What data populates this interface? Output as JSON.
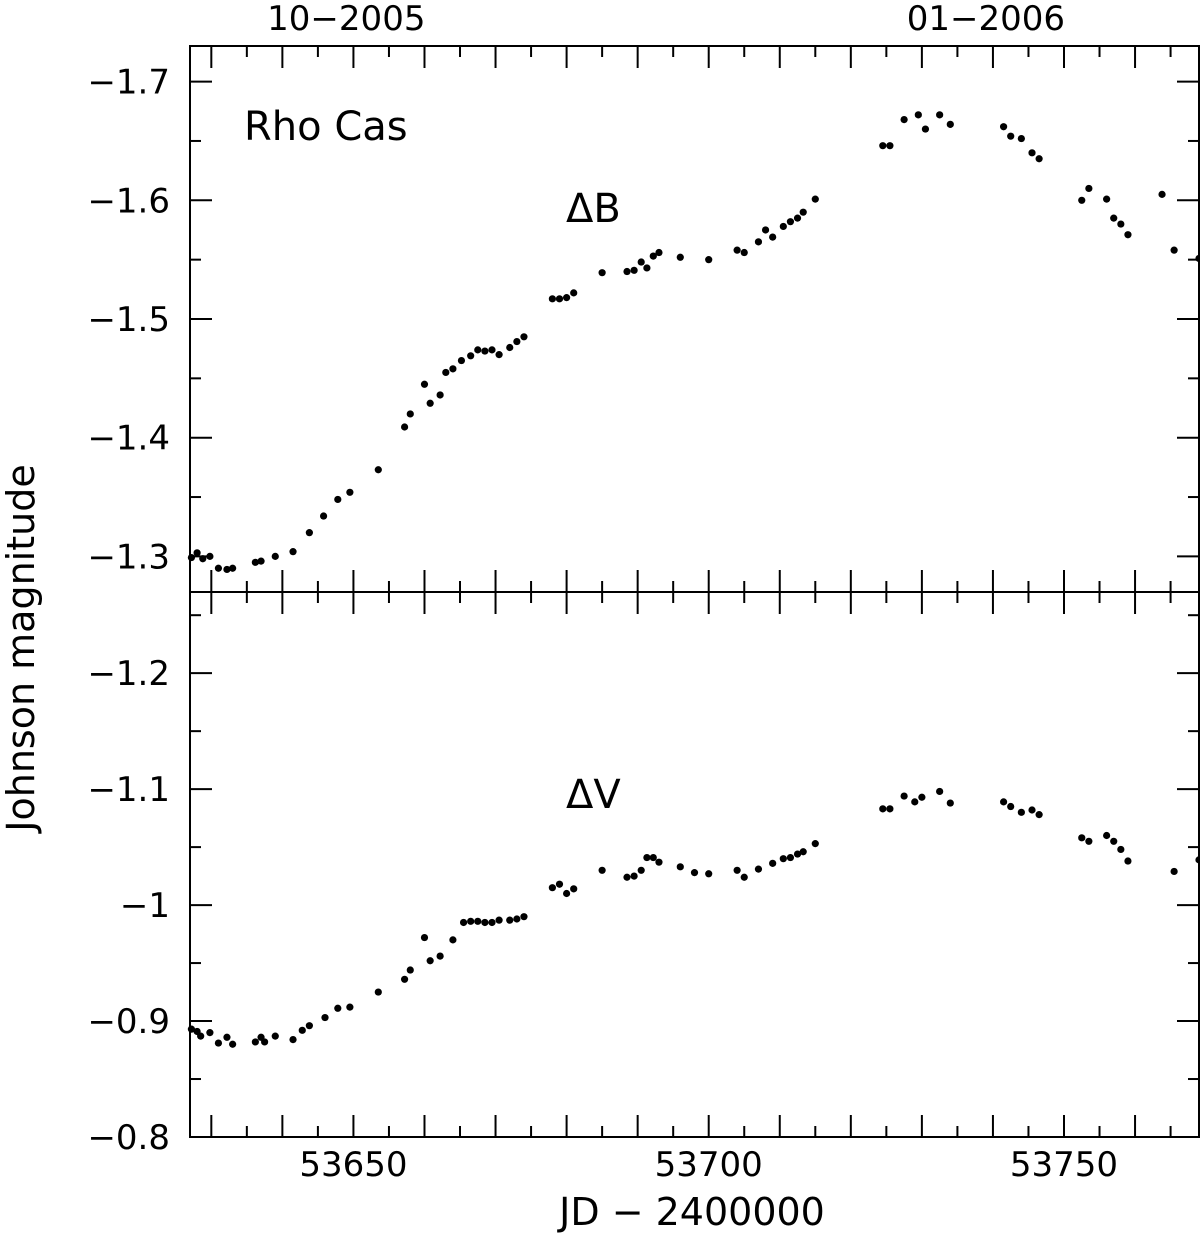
{
  "chart_data": {
    "type": "scatter",
    "title": "Rho Cas",
    "xlabel": "JD − 2400000",
    "ylabel": "Johnson magnitude",
    "xlim": [
      53627,
      53769
    ],
    "x_ticks": [
      "53650",
      "53700",
      "53750"
    ],
    "top_date_labels": [
      {
        "x": 53649,
        "label": "10−2005"
      },
      {
        "x": 53739,
        "label": "01−2006"
      }
    ],
    "grid": false,
    "panels": [
      {
        "label": "ΔB",
        "ylim": [
          -1.73,
          -1.27
        ],
        "y_inverted": true,
        "y_ticks": [
          -1.7,
          -1.6,
          -1.5,
          -1.4,
          -1.3
        ],
        "y_tick_labels": [
          "−1.7",
          "−1.6",
          "−1.5",
          "−1.4",
          "−1.3"
        ],
        "points": [
          [
            53627.2,
            -1.299
          ],
          [
            53628.0,
            -1.303
          ],
          [
            53628.8,
            -1.298
          ],
          [
            53629.8,
            -1.3
          ],
          [
            53631.0,
            -1.29
          ],
          [
            53632.2,
            -1.289
          ],
          [
            53633.0,
            -1.29
          ],
          [
            53636.2,
            -1.295
          ],
          [
            53637.0,
            -1.296
          ],
          [
            53639.0,
            -1.3
          ],
          [
            53641.5,
            -1.304
          ],
          [
            53643.8,
            -1.32
          ],
          [
            53645.8,
            -1.334
          ],
          [
            53647.8,
            -1.348
          ],
          [
            53649.5,
            -1.354
          ],
          [
            53653.5,
            -1.373
          ],
          [
            53657.2,
            -1.409
          ],
          [
            53658.0,
            -1.42
          ],
          [
            53660.0,
            -1.445
          ],
          [
            53660.8,
            -1.429
          ],
          [
            53662.2,
            -1.436
          ],
          [
            53663.0,
            -1.455
          ],
          [
            53664.0,
            -1.458
          ],
          [
            53665.2,
            -1.465
          ],
          [
            53666.5,
            -1.469
          ],
          [
            53667.5,
            -1.474
          ],
          [
            53668.5,
            -1.473
          ],
          [
            53669.5,
            -1.474
          ],
          [
            53670.5,
            -1.47
          ],
          [
            53672.0,
            -1.476
          ],
          [
            53673.0,
            -1.481
          ],
          [
            53674.0,
            -1.485
          ],
          [
            53678.0,
            -1.517
          ],
          [
            53679.0,
            -1.517
          ],
          [
            53680.0,
            -1.518
          ],
          [
            53681.0,
            -1.522
          ],
          [
            53685.0,
            -1.539
          ],
          [
            53688.5,
            -1.54
          ],
          [
            53689.5,
            -1.541
          ],
          [
            53690.5,
            -1.548
          ],
          [
            53691.3,
            -1.543
          ],
          [
            53692.2,
            -1.553
          ],
          [
            53693.0,
            -1.556
          ],
          [
            53696.0,
            -1.552
          ],
          [
            53700.0,
            -1.55
          ],
          [
            53704.0,
            -1.558
          ],
          [
            53705.0,
            -1.556
          ],
          [
            53707.0,
            -1.565
          ],
          [
            53708.0,
            -1.575
          ],
          [
            53709.0,
            -1.569
          ],
          [
            53710.5,
            -1.578
          ],
          [
            53711.5,
            -1.582
          ],
          [
            53712.5,
            -1.585
          ],
          [
            53713.3,
            -1.59
          ],
          [
            53715.0,
            -1.601
          ],
          [
            53724.5,
            -1.646
          ],
          [
            53725.5,
            -1.646
          ],
          [
            53727.5,
            -1.668
          ],
          [
            53729.5,
            -1.672
          ],
          [
            53730.5,
            -1.66
          ],
          [
            53732.5,
            -1.672
          ],
          [
            53734.0,
            -1.664
          ],
          [
            53741.5,
            -1.662
          ],
          [
            53742.5,
            -1.654
          ],
          [
            53744.0,
            -1.652
          ],
          [
            53745.5,
            -1.64
          ],
          [
            53746.5,
            -1.635
          ],
          [
            53752.5,
            -1.6
          ],
          [
            53753.5,
            -1.61
          ],
          [
            53756.0,
            -1.601
          ],
          [
            53757.0,
            -1.585
          ],
          [
            53758.0,
            -1.58
          ],
          [
            53759.0,
            -1.571
          ],
          [
            53763.8,
            -1.605
          ],
          [
            53765.5,
            -1.558
          ],
          [
            53769.0,
            -1.551
          ]
        ]
      },
      {
        "label": "ΔV",
        "ylim": [
          -1.27,
          -0.8
        ],
        "y_inverted": true,
        "y_ticks": [
          -1.2,
          -1.1,
          -1.0,
          -0.9,
          -0.8
        ],
        "y_tick_labels": [
          "−1.2",
          "−1.1",
          "−1",
          "−0.9",
          "−0.8"
        ],
        "points": [
          [
            53627.2,
            -0.893
          ],
          [
            53628.0,
            -0.891
          ],
          [
            53628.5,
            -0.887
          ],
          [
            53629.8,
            -0.89
          ],
          [
            53631.0,
            -0.881
          ],
          [
            53632.2,
            -0.886
          ],
          [
            53633.0,
            -0.88
          ],
          [
            53636.2,
            -0.882
          ],
          [
            53637.0,
            -0.886
          ],
          [
            53637.5,
            -0.882
          ],
          [
            53639.0,
            -0.887
          ],
          [
            53641.5,
            -0.884
          ],
          [
            53642.8,
            -0.892
          ],
          [
            53643.8,
            -0.896
          ],
          [
            53646.0,
            -0.903
          ],
          [
            53647.8,
            -0.911
          ],
          [
            53649.5,
            -0.912
          ],
          [
            53653.5,
            -0.925
          ],
          [
            53657.2,
            -0.936
          ],
          [
            53658.0,
            -0.944
          ],
          [
            53660.0,
            -0.972
          ],
          [
            53660.8,
            -0.952
          ],
          [
            53662.2,
            -0.956
          ],
          [
            53664.0,
            -0.97
          ],
          [
            53665.5,
            -0.985
          ],
          [
            53666.5,
            -0.986
          ],
          [
            53667.5,
            -0.986
          ],
          [
            53668.5,
            -0.985
          ],
          [
            53669.5,
            -0.985
          ],
          [
            53670.5,
            -0.987
          ],
          [
            53672.0,
            -0.987
          ],
          [
            53673.0,
            -0.988
          ],
          [
            53674.0,
            -0.99
          ],
          [
            53678.0,
            -1.015
          ],
          [
            53679.0,
            -1.018
          ],
          [
            53680.0,
            -1.01
          ],
          [
            53681.0,
            -1.014
          ],
          [
            53685.0,
            -1.03
          ],
          [
            53688.5,
            -1.024
          ],
          [
            53689.5,
            -1.025
          ],
          [
            53690.5,
            -1.03
          ],
          [
            53691.3,
            -1.041
          ],
          [
            53692.2,
            -1.041
          ],
          [
            53693.0,
            -1.037
          ],
          [
            53696.0,
            -1.033
          ],
          [
            53698.0,
            -1.028
          ],
          [
            53700.0,
            -1.027
          ],
          [
            53704.0,
            -1.03
          ],
          [
            53705.0,
            -1.024
          ],
          [
            53707.0,
            -1.031
          ],
          [
            53709.0,
            -1.036
          ],
          [
            53710.5,
            -1.04
          ],
          [
            53711.5,
            -1.041
          ],
          [
            53712.5,
            -1.044
          ],
          [
            53713.3,
            -1.046
          ],
          [
            53715.0,
            -1.053
          ],
          [
            53724.5,
            -1.083
          ],
          [
            53725.5,
            -1.083
          ],
          [
            53727.5,
            -1.094
          ],
          [
            53729.0,
            -1.089
          ],
          [
            53730.0,
            -1.093
          ],
          [
            53732.5,
            -1.098
          ],
          [
            53734.0,
            -1.088
          ],
          [
            53741.5,
            -1.089
          ],
          [
            53742.5,
            -1.085
          ],
          [
            53744.0,
            -1.08
          ],
          [
            53745.5,
            -1.082
          ],
          [
            53746.5,
            -1.078
          ],
          [
            53752.5,
            -1.058
          ],
          [
            53753.5,
            -1.055
          ],
          [
            53756.0,
            -1.06
          ],
          [
            53757.0,
            -1.055
          ],
          [
            53758.0,
            -1.048
          ],
          [
            53759.0,
            -1.038
          ],
          [
            53765.5,
            -1.029
          ],
          [
            53769.0,
            -1.039
          ]
        ]
      }
    ]
  }
}
